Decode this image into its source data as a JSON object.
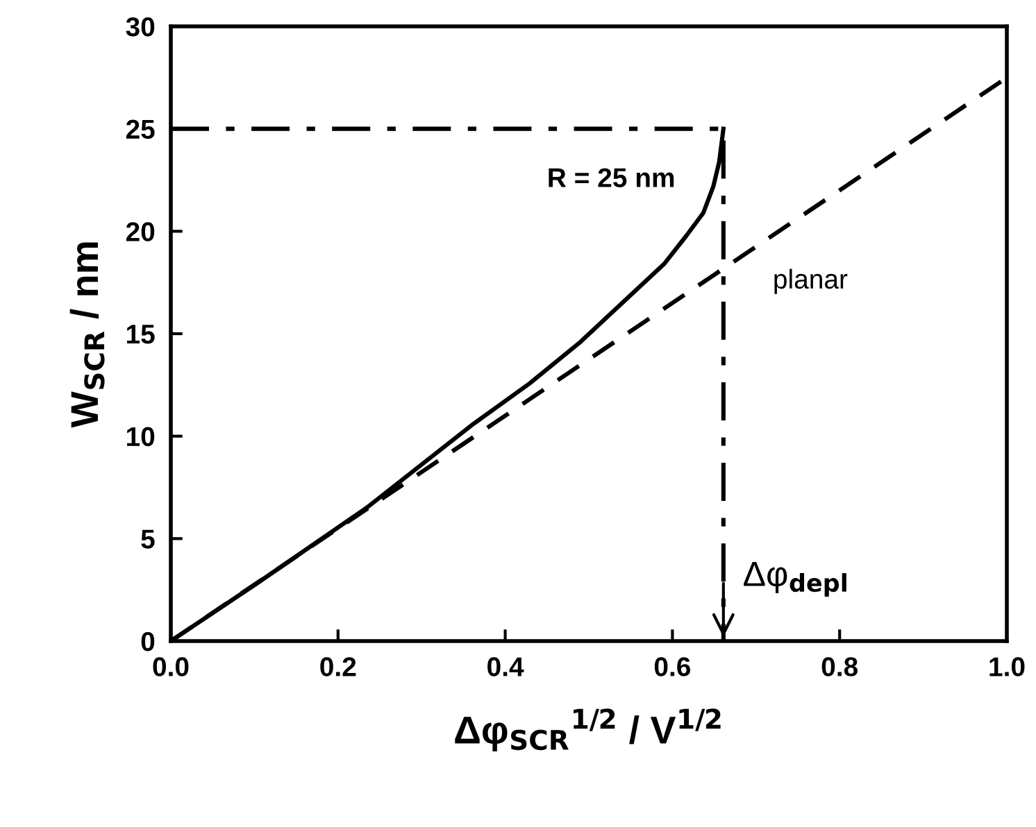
{
  "chart_data": {
    "type": "line",
    "xlabel": "Δφ$_{SCR}$$^{1/2}$ / V$^{1/2}$",
    "ylabel": "W$_{SCR}$ / nm",
    "xlim": [
      0,
      1
    ],
    "ylim": [
      0,
      30
    ],
    "xticks": [
      {
        "value": 0,
        "label": "0.0"
      },
      0.2,
      0.4,
      0.6,
      0.8,
      {
        "value": 1,
        "label": "1.0"
      }
    ],
    "yticks": [
      0,
      5,
      10,
      15,
      20,
      25,
      30
    ],
    "grid": false,
    "legend": false,
    "marker": "none",
    "series": [
      {
        "color": "#000000",
        "line_style": "solid",
        "x": [
          0,
          0.106,
          0.234,
          0.362,
          0.43,
          0.49,
          0.553,
          0.59,
          0.617,
          0.637,
          0.649,
          0.656,
          0.661
        ],
        "values": [
          0,
          2.9,
          6.5,
          10.6,
          12.6,
          14.6,
          17,
          18.4,
          19.8,
          20.9,
          22.2,
          23.4,
          25
        ]
      },
      {
        "color": "#000000",
        "line_style": "dashed",
        "x": [
          0,
          1
        ],
        "values": [
          0,
          27.5
        ]
      },
      {
        "color": "#000000",
        "line_style": "dashdot",
        "x": [
          0,
          0.661,
          0.661
        ],
        "values": [
          25,
          25,
          0
        ]
      }
    ],
    "annotations": [
      "R = 25 nm",
      "planar",
      {
        "text": "Δφ$_{depl}$",
        "x": 0.661,
        "y": 0
      }
    ]
  }
}
